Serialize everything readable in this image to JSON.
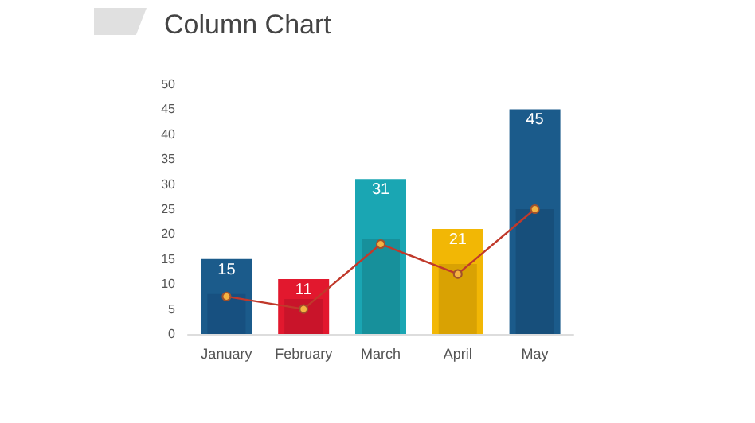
{
  "chart_data": {
    "type": "bar",
    "title": "Column Chart",
    "categories": [
      "January",
      "February",
      "March",
      "April",
      "May"
    ],
    "series": [
      {
        "colors": [
          "#1b5b8b",
          "#e2182e",
          "#1aa6b3",
          "#f2b705",
          "#1b5b8b"
        ],
        "values": [
          15,
          11,
          31,
          21,
          45
        ],
        "value_labels": [
          "15",
          "11",
          "31",
          "21",
          "45"
        ]
      },
      {
        "colors": [
          "#175080",
          "#c9142a",
          "#17909b",
          "#d9a203",
          "#174f7b"
        ],
        "values": [
          8,
          7,
          19,
          14,
          25
        ]
      },
      {
        "type": "line",
        "color": "#c0392b",
        "values": [
          7.5,
          5,
          18,
          12,
          25
        ],
        "marker": "circle"
      }
    ],
    "ylim": [
      0,
      50
    ],
    "yticks": [
      0,
      5,
      10,
      15,
      20,
      25,
      30,
      35,
      40,
      45,
      50
    ],
    "grid": false
  }
}
